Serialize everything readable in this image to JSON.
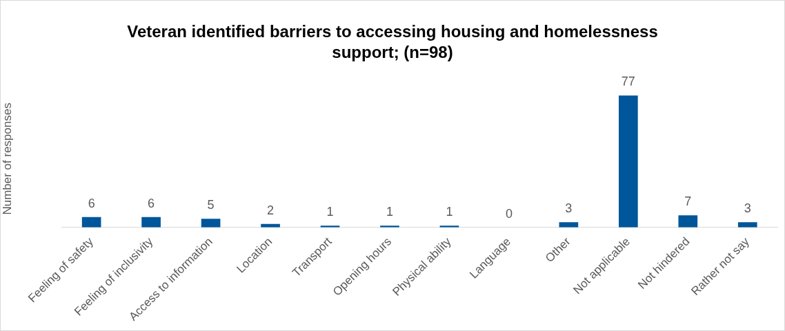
{
  "chart_data": {
    "type": "bar",
    "title": "Veteran identified barriers to accessing housing and homelessness support; (n=98)",
    "ylabel": "Number of responses",
    "categories": [
      "Feeling of safety",
      "Feeling of inclusivity",
      "Access to information",
      "Location",
      "Transport",
      "Opening hours",
      "Physical ability",
      "Language",
      "Other",
      "Not applicable",
      "Not hindered",
      "Rather not say"
    ],
    "values": [
      6,
      6,
      5,
      2,
      1,
      1,
      1,
      0,
      3,
      77,
      7,
      3
    ],
    "color": "#00569a",
    "data_labels": true,
    "grid": false,
    "legend": false
  }
}
